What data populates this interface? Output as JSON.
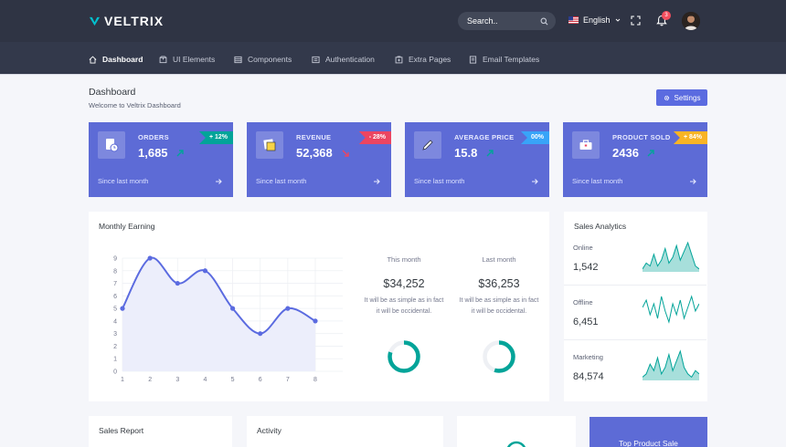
{
  "app": {
    "brand": "VELTRIX",
    "accent": "#5d6bd6",
    "header_bg": "#2f3444"
  },
  "header": {
    "search_placeholder": "Search..",
    "language": "English",
    "notification_count": "3"
  },
  "nav": [
    {
      "label": "Dashboard",
      "icon": "home-icon",
      "active": true
    },
    {
      "label": "UI Elements",
      "icon": "box-icon"
    },
    {
      "label": "Components",
      "icon": "layers-icon"
    },
    {
      "label": "Authentication",
      "icon": "lock-icon"
    },
    {
      "label": "Extra Pages",
      "icon": "file-icon"
    },
    {
      "label": "Email Templates",
      "icon": "mail-icon"
    }
  ],
  "page": {
    "title": "Dashboard",
    "subtitle": "Welcome to Veltrix Dashboard",
    "settings_label": "Settings"
  },
  "stats": [
    {
      "label": "ORDERS",
      "value": "1,685",
      "badge": "+ 12%",
      "badge_color": "#02a499",
      "trend": "up",
      "footer": "Since last month",
      "icon": "clipboard-icon"
    },
    {
      "label": "REVENUE",
      "value": "52,368",
      "badge": "- 28%",
      "badge_color": "#ec4561",
      "trend": "down",
      "footer": "Since last month",
      "icon": "sticky-note-icon"
    },
    {
      "label": "AVERAGE PRICE",
      "value": "15.8",
      "badge": "00%",
      "badge_color": "#38a4f8",
      "trend": "up",
      "footer": "Since last month",
      "icon": "pencil-icon"
    },
    {
      "label": "PRODUCT SOLD",
      "value": "2436",
      "badge": "+ 84%",
      "badge_color": "#f8b425",
      "trend": "up",
      "footer": "Since last month",
      "icon": "toolbox-icon"
    }
  ],
  "monthly_earning": {
    "title": "Monthly Earning",
    "columns": [
      {
        "caption": "This month",
        "amount": "$34,252",
        "desc": "It will be as simple as in fact it will be occidental.",
        "progress": 0.8
      },
      {
        "caption": "Last month",
        "amount": "$36,253",
        "desc": "It will be as simple as in fact it will be occidental.",
        "progress": 0.55
      }
    ],
    "ring_color": "#02a499"
  },
  "chart_data": {
    "type": "area",
    "x": [
      1,
      2,
      3,
      4,
      5,
      6,
      7,
      8
    ],
    "values": [
      5,
      9,
      7,
      8,
      5,
      3,
      5,
      4
    ],
    "xlim": [
      1,
      8
    ],
    "ylim": [
      0,
      9
    ],
    "yticks": [
      0,
      1,
      2,
      3,
      4,
      5,
      6,
      7,
      8,
      9
    ],
    "grid": true,
    "line_color": "#5b6be0",
    "fill_color": "#eceefb"
  },
  "sales_analytics": {
    "title": "Sales Analytics",
    "rows": [
      {
        "label": "Online",
        "value": "1,542",
        "spark": [
          1,
          3,
          2,
          6,
          2,
          4,
          8,
          3,
          5,
          9,
          4,
          7,
          10,
          6,
          2,
          1
        ],
        "type": "area"
      },
      {
        "label": "Offline",
        "value": "6,451",
        "spark": [
          5,
          7,
          3,
          6,
          2,
          8,
          4,
          1,
          6,
          3,
          7,
          2,
          5,
          8,
          4,
          6
        ],
        "type": "line"
      },
      {
        "label": "Marketing",
        "value": "84,574",
        "spark": [
          1,
          2,
          5,
          3,
          7,
          2,
          4,
          8,
          3,
          6,
          9,
          4,
          2,
          1,
          3,
          2
        ],
        "type": "area"
      }
    ],
    "spark_color": "#02a499"
  },
  "bottom": {
    "sales_report": "Sales Report",
    "activity": "Activity",
    "top_product": "Top Product Sale"
  }
}
